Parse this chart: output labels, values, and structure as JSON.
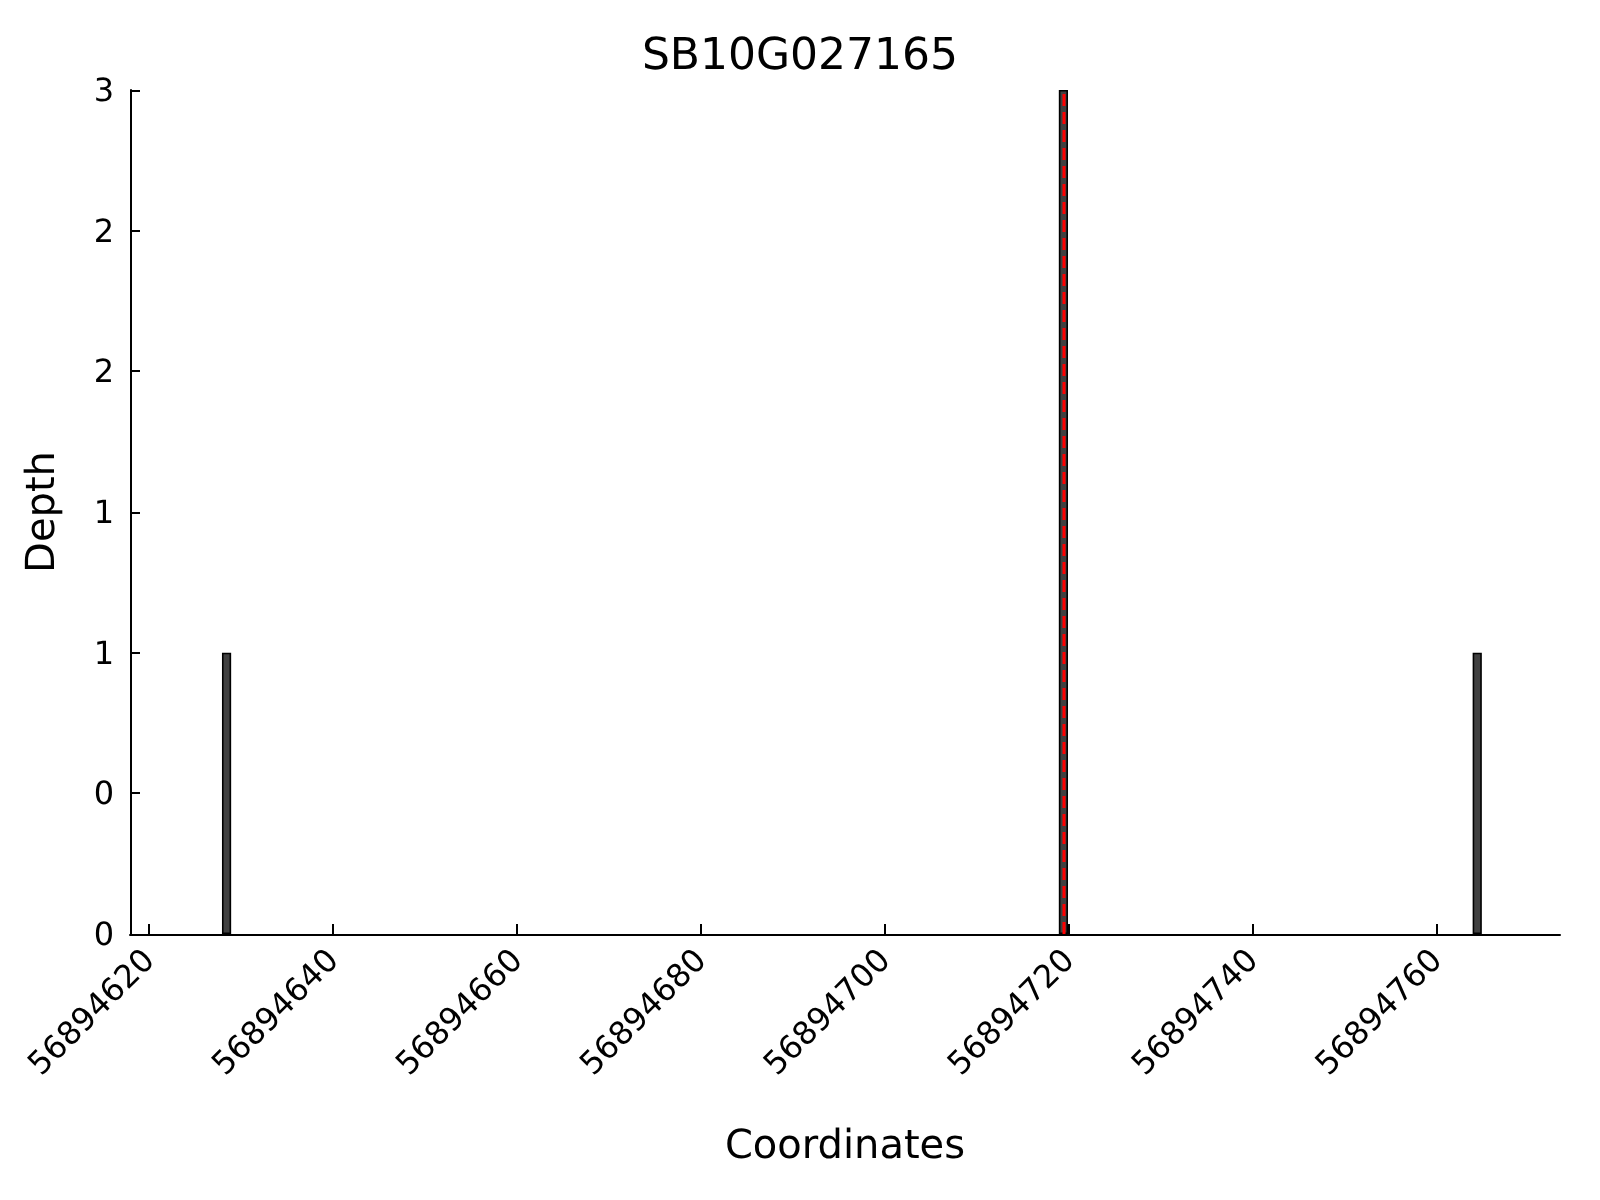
{
  "chart_data": {
    "type": "bar",
    "title": "SB10G027165",
    "xlabel": "Coordinates",
    "ylabel": "Depth",
    "x": [
      56894628.5,
      56894719.5,
      56894764.5
    ],
    "values": [
      1,
      3,
      1
    ],
    "color": "#404040",
    "xlim": [
      56894618,
      56894773.5
    ],
    "xticks": [
      56894620,
      56894640,
      56894660,
      56894680,
      56894700,
      56894720,
      56894740,
      56894760
    ],
    "ylim": [
      0,
      3
    ],
    "yticks": [
      0,
      {
        "value": 0.5,
        "label": "0"
      },
      1,
      {
        "value": 1.5,
        "label": "1"
      },
      2,
      {
        "value": 2.5,
        "label": "2"
      },
      3
    ],
    "ref_lines": [
      {
        "axis": "x",
        "value": 56894719.5,
        "color": "#ff0000",
        "line_style": "dashed"
      }
    ],
    "grid": false
  }
}
